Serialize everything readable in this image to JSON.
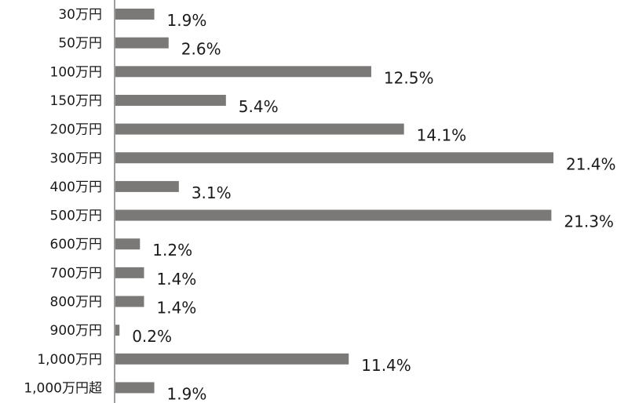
{
  "chart_data": {
    "type": "bar",
    "orientation": "horizontal",
    "title": "",
    "xlabel": "",
    "ylabel": "",
    "categories": [
      "30万円",
      "50万円",
      "100万円",
      "150万円",
      "200万円",
      "300万円",
      "400万円",
      "500万円",
      "600万円",
      "700万円",
      "800万円",
      "900万円",
      "1,000万円",
      "1,000万円超"
    ],
    "values": [
      1.9,
      2.6,
      12.5,
      5.4,
      14.1,
      21.4,
      3.1,
      21.3,
      1.2,
      1.4,
      1.4,
      0.2,
      11.4,
      1.9
    ],
    "value_labels": [
      "1.9%",
      "2.6%",
      "12.5%",
      "5.4%",
      "14.1%",
      "21.4%",
      "3.1%",
      "21.3%",
      "1.2%",
      "1.4%",
      "1.4%",
      "0.2%",
      "11.4%",
      "1.9%"
    ],
    "xlim": [
      0,
      21.4
    ],
    "grid": false,
    "legend": "none",
    "bar_color": "#7a7977"
  }
}
